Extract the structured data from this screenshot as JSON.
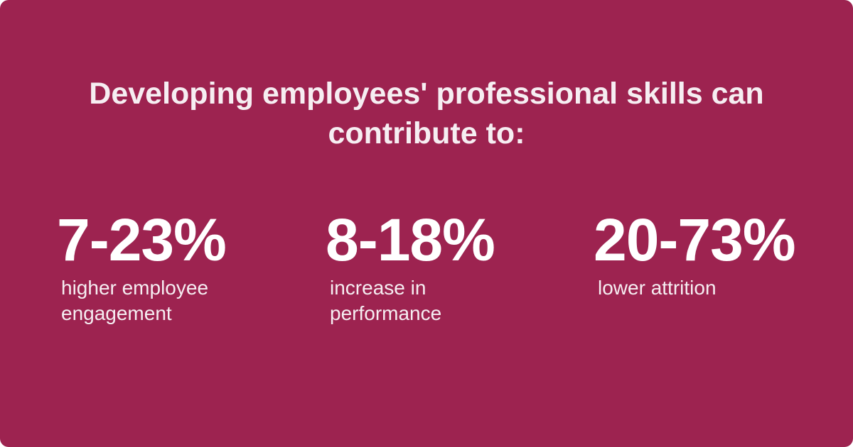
{
  "title": "Developing employees' professional skills can contribute to:",
  "stats": [
    {
      "value": "7-23%",
      "label": "higher employee engagement"
    },
    {
      "value": "8-18%",
      "label": "increase in performance"
    },
    {
      "value": "20-73%",
      "label": "lower attrition"
    }
  ]
}
